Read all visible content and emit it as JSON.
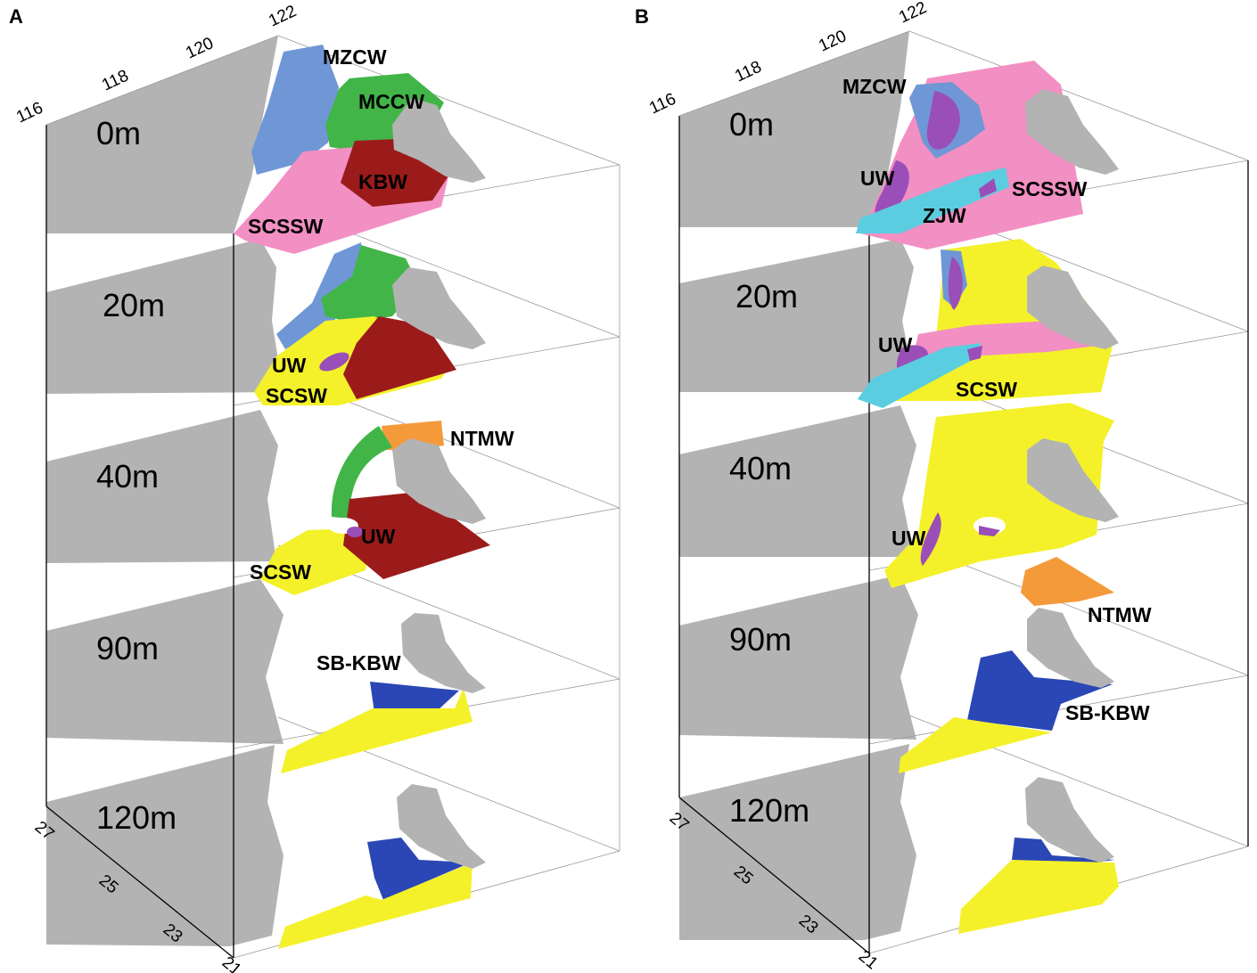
{
  "panels": [
    {
      "letter": "A",
      "lon_ticks": [
        "116",
        "118",
        "120",
        "122"
      ],
      "lat_ticks": [
        "27",
        "25",
        "23",
        "21"
      ],
      "layers": [
        {
          "depth": "0m",
          "labels": [
            "MZCW",
            "MCCW",
            "KBW",
            "SCSSW"
          ]
        },
        {
          "depth": "20m",
          "labels": [
            "UW",
            "SCSW"
          ]
        },
        {
          "depth": "40m",
          "labels": [
            "NTMW",
            "UW",
            "SCSW"
          ]
        },
        {
          "depth": "90m",
          "labels": [
            "SB-KBW"
          ]
        },
        {
          "depth": "120m",
          "labels": []
        }
      ]
    },
    {
      "letter": "B",
      "lon_ticks": [
        "116",
        "118",
        "120",
        "122"
      ],
      "lat_ticks": [
        "27",
        "25",
        "23",
        "21"
      ],
      "layers": [
        {
          "depth": "0m",
          "labels": [
            "MZCW",
            "UW",
            "ZJW",
            "SCSSW"
          ]
        },
        {
          "depth": "20m",
          "labels": [
            "UW",
            "SCSW"
          ]
        },
        {
          "depth": "40m",
          "labels": [
            "UW"
          ]
        },
        {
          "depth": "90m",
          "labels": [
            "NTMW",
            "SB-KBW"
          ]
        },
        {
          "depth": "120m",
          "labels": []
        }
      ]
    }
  ],
  "colors": {
    "land": "#b3b3b3",
    "MZCW": "#6f97d6",
    "MCCW": "#42b549",
    "KBW": "#9b1b1b",
    "SCSSW": "#f28fc3",
    "SCSW": "#f4f12a",
    "UW": "#9a4fb8",
    "ZJW": "#5bcde0",
    "NTMW": "#f59a3a",
    "SB-KBW": "#2b47b5"
  }
}
